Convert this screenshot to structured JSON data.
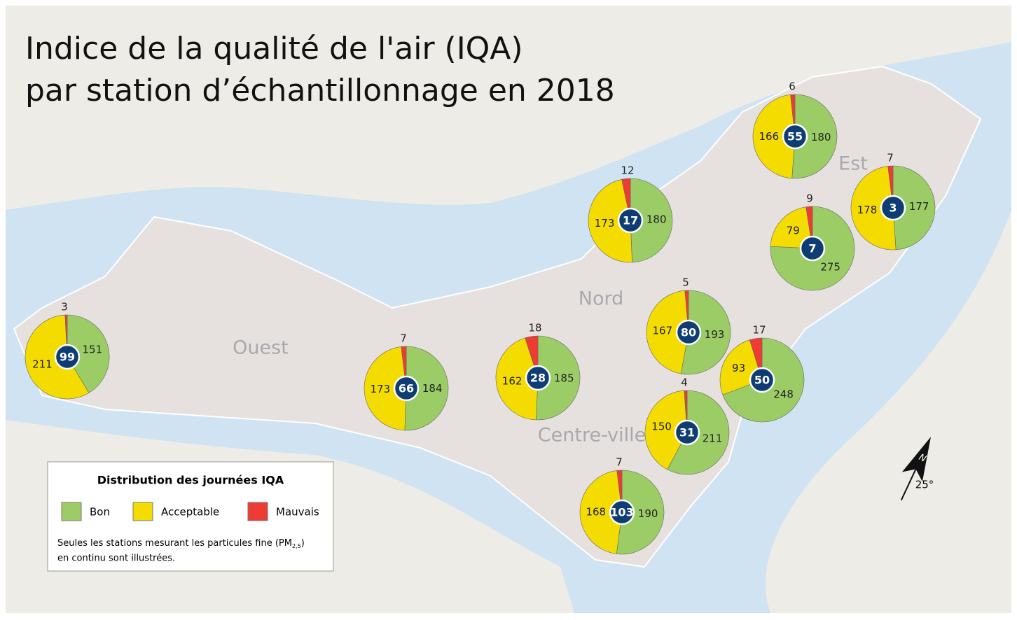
{
  "title": [
    "Indice de la qualité de l'air (IQA)",
    "par station d’échantillonnage en 2018"
  ],
  "regions": [
    "Ouest",
    "Nord",
    "Centre-ville",
    "Est"
  ],
  "legend": {
    "title": "Distribution des journées IQA",
    "note": {
      "line1": "Seules les stations mesurant les particules fine (PM",
      "sub": "2,5",
      "end": ")",
      "line2": "en continu sont illustrées."
    }
  },
  "series": [
    {
      "name": "Bon",
      "color": "#9ccc65"
    },
    {
      "name": "Acceptable",
      "color": "#f5dc00"
    },
    {
      "name": "Mauvais",
      "color": "#ee3b33"
    }
  ],
  "stations": [
    {
      "id": 55,
      "values": [
        180,
        166,
        6
      ]
    },
    {
      "id": 17,
      "values": [
        180,
        173,
        12
      ]
    },
    {
      "id": 7,
      "values": [
        275,
        79,
        9
      ]
    },
    {
      "id": 3,
      "values": [
        177,
        178,
        7
      ]
    },
    {
      "id": 99,
      "values": [
        151,
        211,
        3
      ]
    },
    {
      "id": 66,
      "values": [
        184,
        173,
        7
      ]
    },
    {
      "id": 28,
      "values": [
        185,
        162,
        18
      ]
    },
    {
      "id": 80,
      "values": [
        193,
        167,
        5
      ]
    },
    {
      "id": 50,
      "values": [
        248,
        93,
        17
      ]
    },
    {
      "id": 31,
      "values": [
        211,
        150,
        4
      ]
    },
    {
      "id": 103,
      "values": [
        190,
        168,
        7
      ]
    }
  ],
  "compass": {
    "north": "N",
    "angle": "25°"
  }
}
